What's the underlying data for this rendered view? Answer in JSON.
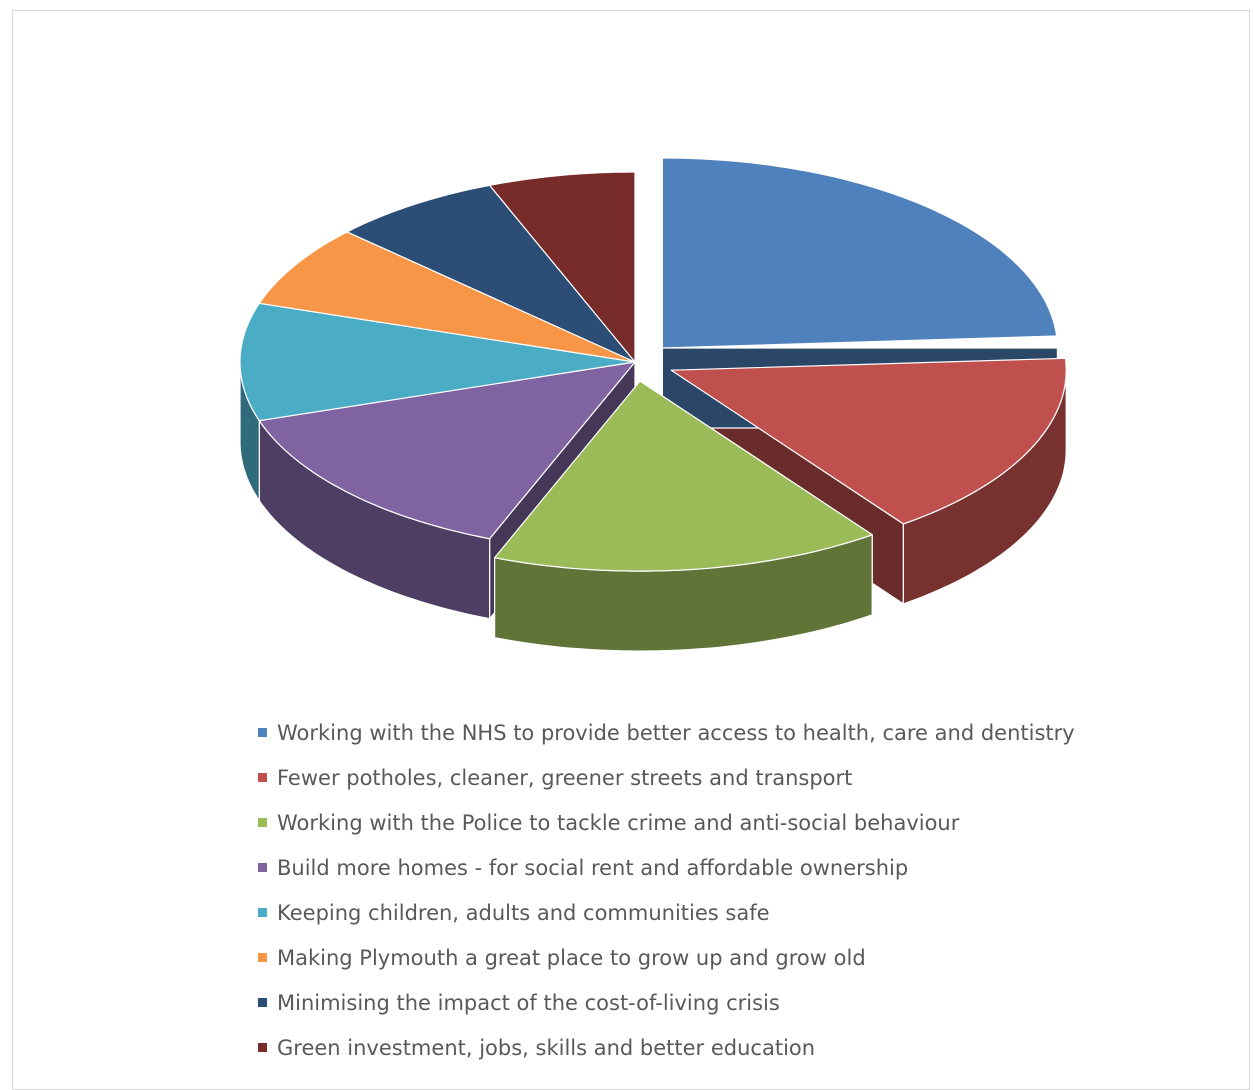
{
  "chart_data": {
    "type": "pie",
    "title": "",
    "categories": [
      "Working with the NHS to provide better access to health, care and dentistry",
      "Fewer potholes, cleaner, greener streets and transport",
      "Working with the Police to tackle crime and anti-social behaviour",
      "Build more homes - for social rent and affordable ownership",
      "Keeping children, adults and communities safe",
      "Making Plymouth a great place to grow up and grow old",
      "Minimising the impact of the cost-of-living crisis",
      "Green investment, jobs, skills and better education"
    ],
    "values": [
      24,
      16,
      16,
      14,
      10,
      7,
      7,
      6
    ],
    "colors": [
      "#4f81bd",
      "#c0504d",
      "#9bbb59",
      "#8064a2",
      "#4bacc6",
      "#f79646",
      "#2c4d75",
      "#772c2a"
    ],
    "exploded": [
      true,
      true,
      true,
      false,
      false,
      false,
      false,
      false
    ],
    "legend_position": "bottom",
    "three_d": true
  }
}
